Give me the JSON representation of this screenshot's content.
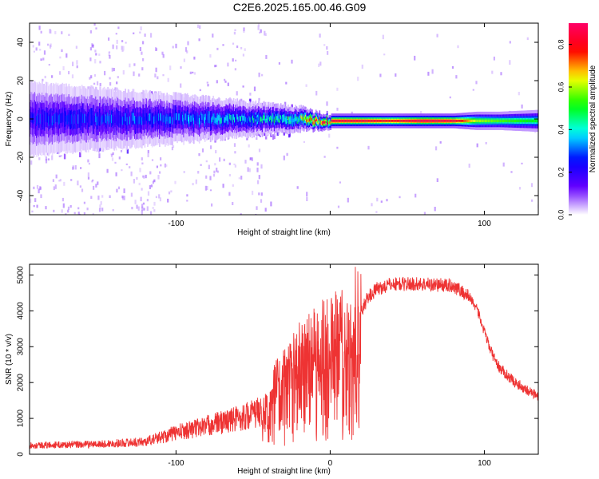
{
  "title": "C2E6.2025.165.00.46.G09",
  "chart_data": [
    {
      "type": "heatmap",
      "xlabel": "Height of straight line (km)",
      "ylabel": "Frequency (Hz)",
      "xlim": [
        -195,
        135
      ],
      "ylim": [
        -50,
        50
      ],
      "xticks": [
        -100,
        0,
        100
      ],
      "xtick_labels": [
        "-100",
        "",
        "100"
      ],
      "yticks": [
        -40,
        -20,
        0,
        20,
        40
      ],
      "colorbar": {
        "label": "Normalized spectral amplitude",
        "range": [
          0.0,
          0.9
        ],
        "ticks": [
          0.0,
          0.2,
          0.4,
          0.6,
          0.8
        ],
        "tick_labels": [
          "0.0",
          "0.2",
          "0.4",
          "0.6",
          "0.8"
        ],
        "colormap": [
          "#ffffff",
          "#6600ff",
          "#0000ff",
          "#00ffff",
          "#00ff00",
          "#ffff00",
          "#ff0000",
          "#ff0066"
        ]
      },
      "ridge": {
        "x": [
          -195,
          -150,
          -100,
          -60,
          -40,
          -20,
          -10,
          0,
          20,
          40,
          60,
          80,
          95,
          110,
          135
        ],
        "center_hz": [
          0,
          0,
          0,
          0,
          0,
          0,
          -1,
          -1,
          -1,
          -1,
          -1,
          -1,
          -1,
          -1,
          -1
        ],
        "peak_amplitude": [
          0.25,
          0.28,
          0.32,
          0.38,
          0.42,
          0.55,
          0.88,
          0.85,
          0.85,
          0.8,
          0.88,
          0.85,
          0.6,
          0.55,
          0.5
        ],
        "half_width_hz": [
          6,
          5,
          4,
          3,
          2.5,
          2,
          1.5,
          1.2,
          1.2,
          1.2,
          1.2,
          1.2,
          1.5,
          1.5,
          1.8
        ]
      }
    },
    {
      "type": "line",
      "xlabel": "Height of straight line (km)",
      "ylabel": "SNR (10 * v/v)",
      "xlim": [
        -195,
        135
      ],
      "ylim": [
        0,
        5300
      ],
      "xticks": [
        -100,
        0,
        100
      ],
      "xtick_labels": [
        "-100",
        "0",
        "100"
      ],
      "yticks": [
        0,
        1000,
        2000,
        3000,
        4000,
        5000
      ],
      "color": "#ee3333",
      "envelope": {
        "x": [
          -195,
          -150,
          -120,
          -100,
          -80,
          -60,
          -40,
          -35,
          -30,
          -20,
          -10,
          0,
          10,
          20,
          25,
          30,
          40,
          60,
          80,
          90,
          95,
          100,
          105,
          110,
          120,
          135
        ],
        "y": [
          250,
          280,
          350,
          600,
          800,
          1000,
          1250,
          2000,
          2200,
          2700,
          3000,
          3250,
          3600,
          4000,
          4400,
          4600,
          4750,
          4750,
          4700,
          4400,
          4100,
          3400,
          2800,
          2400,
          2000,
          1600
        ]
      }
    }
  ]
}
